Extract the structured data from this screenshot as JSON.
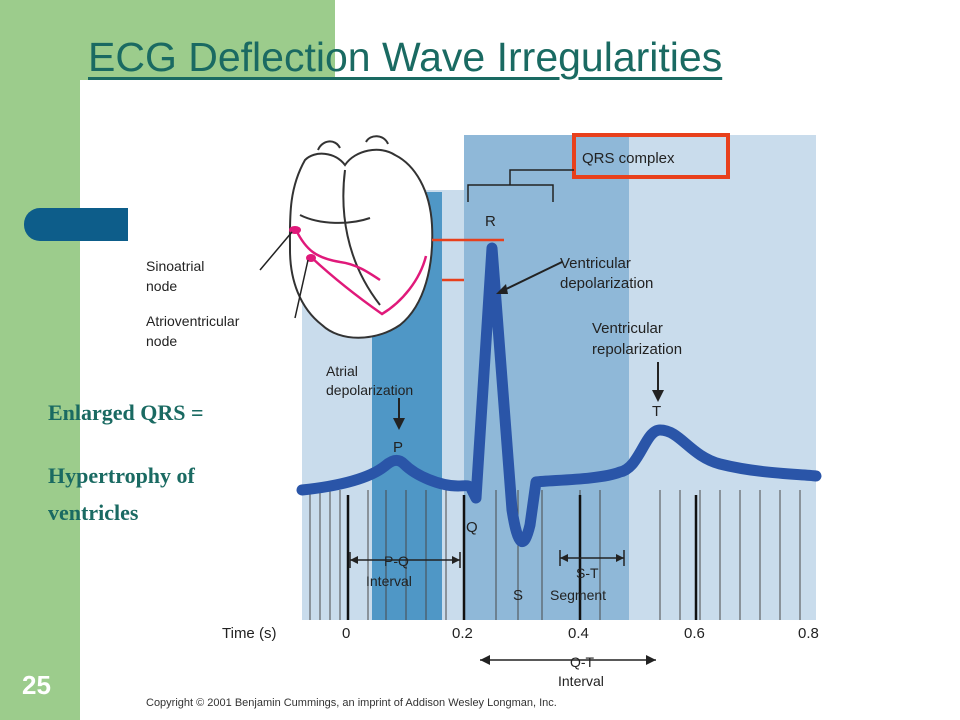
{
  "slide": {
    "title": "ECG Deflection Wave Irregularities",
    "page_number": "25",
    "body_lines": [
      "Enlarged QRS =",
      "Hypertrophy of",
      "ventricles"
    ]
  },
  "figure": {
    "labels": {
      "qrs_complex": "QRS complex",
      "r": "R",
      "p": "P",
      "q": "Q",
      "s": "S",
      "t": "T",
      "ventricular_depolarization": [
        "Ventricular",
        "depolarization"
      ],
      "ventricular_repolarization": [
        "Ventricular",
        "repolarization"
      ],
      "atrial_depolarization": [
        "Atrial",
        "depolarization"
      ],
      "sinoatrial_node": [
        "Sinoatrial",
        "node"
      ],
      "atrioventricular_node": [
        "Atrioventricular",
        "node"
      ],
      "pq_interval": [
        "P-Q",
        "Interval"
      ],
      "st_segment": [
        "S-T",
        "Segment"
      ],
      "qt_interval": [
        "Q-T",
        "Interval"
      ],
      "time_axis_label": "Time (s)",
      "time_ticks": [
        "0",
        "0.2",
        "0.4",
        "0.6",
        "0.8"
      ],
      "copyright": "Copyright © 2001 Benjamin Cummings, an imprint of Addison Wesley Longman, Inc."
    },
    "colors": {
      "light_band": "#c9dcec",
      "mid_band": "#a9c8e0",
      "dark_band": "#4f97c6",
      "qrs_band": "#8fb8d8",
      "trace": "#2a55a8",
      "highlight": "#e8401c",
      "conduction": "#e0197a"
    }
  }
}
